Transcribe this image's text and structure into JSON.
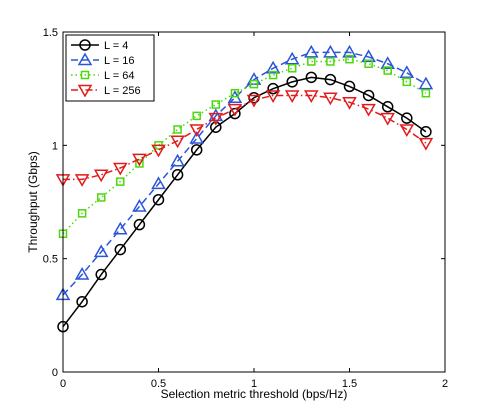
{
  "chart_data": {
    "type": "line",
    "title": "",
    "xlabel": "Selection metric threshold (bps/Hz)",
    "ylabel": "Throughput (Gbps)",
    "xlim": [
      0,
      2
    ],
    "ylim": [
      0,
      1.5
    ],
    "xticks": [
      0,
      0.5,
      1,
      1.5,
      2
    ],
    "xtick_labels": [
      "0",
      "0.5",
      "1",
      "1.5",
      "2"
    ],
    "yticks": [
      0,
      0.5,
      1,
      1.5
    ],
    "ytick_labels": [
      "0",
      "0.5",
      "1",
      "1.5"
    ],
    "grid": false,
    "legend_position": "top-left",
    "x": [
      0,
      0.1,
      0.2,
      0.3,
      0.4,
      0.5,
      0.6,
      0.7,
      0.8,
      0.9,
      1.0,
      1.1,
      1.2,
      1.3,
      1.4,
      1.5,
      1.6,
      1.7,
      1.8,
      1.9
    ],
    "series": [
      {
        "name": "L = 4",
        "color": "#000000",
        "line_style": "solid",
        "marker": "circle",
        "values": [
          0.2,
          0.31,
          0.43,
          0.54,
          0.65,
          0.76,
          0.87,
          0.98,
          1.08,
          1.14,
          1.21,
          1.25,
          1.28,
          1.3,
          1.29,
          1.26,
          1.22,
          1.17,
          1.12,
          1.06
        ]
      },
      {
        "name": "L = 16",
        "color": "#2a55d8",
        "line_style": "dashed",
        "marker": "triangle-up",
        "values": [
          0.34,
          0.43,
          0.53,
          0.63,
          0.73,
          0.83,
          0.93,
          1.03,
          1.13,
          1.21,
          1.29,
          1.34,
          1.38,
          1.41,
          1.41,
          1.41,
          1.39,
          1.36,
          1.32,
          1.27
        ]
      },
      {
        "name": "L = 64",
        "color": "#4bd80c",
        "line_style": "dotted",
        "marker": "square",
        "values": [
          0.61,
          0.7,
          0.77,
          0.84,
          0.92,
          1.0,
          1.07,
          1.13,
          1.18,
          1.23,
          1.27,
          1.31,
          1.34,
          1.37,
          1.37,
          1.38,
          1.36,
          1.33,
          1.28,
          1.23
        ]
      },
      {
        "name": "L = 256",
        "color": "#e21a1a",
        "line_style": "dashdot",
        "marker": "triangle-down",
        "values": [
          0.85,
          0.85,
          0.87,
          0.9,
          0.94,
          0.98,
          1.02,
          1.07,
          1.12,
          1.16,
          1.2,
          1.22,
          1.22,
          1.22,
          1.21,
          1.19,
          1.16,
          1.12,
          1.07,
          1.01
        ]
      }
    ]
  }
}
